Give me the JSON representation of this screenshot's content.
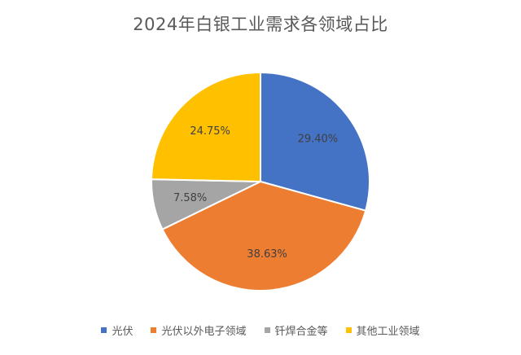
{
  "chart_data": {
    "type": "pie",
    "title": "2024年白银工业需求各领域占比",
    "categories": [
      "光伏",
      "光伏以外电子领域",
      "钎焊合金等",
      "其他工业领域"
    ],
    "values": [
      29.4,
      38.63,
      7.58,
      24.75
    ],
    "data_labels": [
      "29.40%",
      "38.63%",
      "7.58%",
      "24.75%"
    ],
    "colors": [
      "#4472C4",
      "#ED7D31",
      "#A5A5A5",
      "#FFC000"
    ],
    "legend_position": "bottom"
  }
}
